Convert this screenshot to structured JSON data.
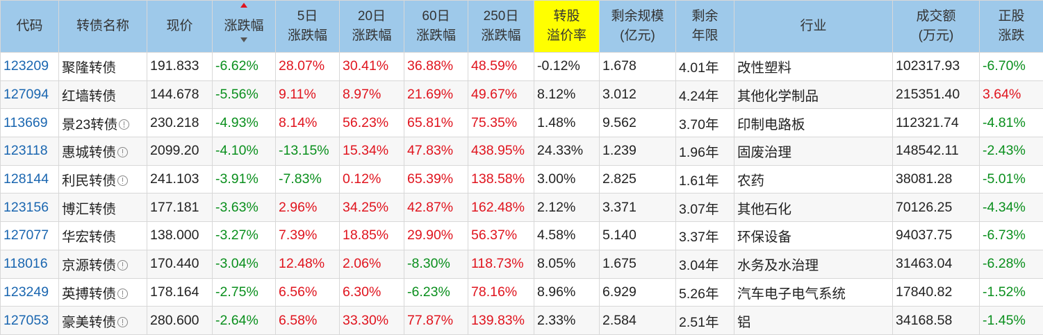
{
  "headers": {
    "code": "代码",
    "name": "转债名称",
    "price": "现价",
    "change": "涨跌幅",
    "d5_line1": "5日",
    "d5_line2": "涨跌幅",
    "d20_line1": "20日",
    "d20_line2": "涨跌幅",
    "d60_line1": "60日",
    "d60_line2": "涨跌幅",
    "d250_line1": "250日",
    "d250_line2": "涨跌幅",
    "premium_line1": "转股",
    "premium_line2": "溢价率",
    "scale_line1": "剩余规模",
    "scale_line2": "(亿元)",
    "years_line1": "剩余",
    "years_line2": "年限",
    "industry": "行业",
    "volume_line1": "成交额",
    "volume_line2": "(万元)",
    "stock_line1": "正股",
    "stock_line2": "涨跌"
  },
  "colors": {
    "header_bg": "#9ec9ea",
    "highlight": "#ffff00",
    "up": "#e0141e",
    "down": "#0a8f1d",
    "code": "#1a66b0"
  },
  "rows": [
    {
      "code": "123209",
      "name": "聚隆转债",
      "flag": false,
      "price": "191.833",
      "change": "-6.62%",
      "d5": "28.07%",
      "d20": "30.41%",
      "d60": "36.88%",
      "d250": "48.59%",
      "premium": "-0.12%",
      "scale": "1.678",
      "years": "4.01年",
      "industry": "改性塑料",
      "volume": "102317.93",
      "stock": "-6.70%"
    },
    {
      "code": "127094",
      "name": "红墙转债",
      "flag": false,
      "price": "144.678",
      "change": "-5.56%",
      "d5": "9.11%",
      "d20": "8.97%",
      "d60": "21.69%",
      "d250": "49.67%",
      "premium": "8.12%",
      "scale": "3.012",
      "years": "4.24年",
      "industry": "其他化学制品",
      "volume": "215351.40",
      "stock": "3.64%"
    },
    {
      "code": "113669",
      "name": "景23转债",
      "flag": true,
      "price": "230.218",
      "change": "-4.93%",
      "d5": "8.14%",
      "d20": "56.23%",
      "d60": "65.81%",
      "d250": "75.35%",
      "premium": "1.48%",
      "scale": "9.562",
      "years": "3.70年",
      "industry": "印制电路板",
      "volume": "112321.74",
      "stock": "-4.81%"
    },
    {
      "code": "123118",
      "name": "惠城转债",
      "flag": true,
      "price": "2099.20",
      "change": "-4.10%",
      "d5": "-13.15%",
      "d20": "15.34%",
      "d60": "47.83%",
      "d250": "438.95%",
      "premium": "24.33%",
      "scale": "1.239",
      "years": "1.96年",
      "industry": "固废治理",
      "volume": "148542.11",
      "stock": "-2.43%"
    },
    {
      "code": "128144",
      "name": "利民转债",
      "flag": true,
      "price": "241.103",
      "change": "-3.91%",
      "d5": "-7.83%",
      "d20": "0.12%",
      "d60": "65.39%",
      "d250": "138.58%",
      "premium": "3.00%",
      "scale": "2.825",
      "years": "1.61年",
      "industry": "农药",
      "volume": "38081.28",
      "stock": "-5.01%"
    },
    {
      "code": "123156",
      "name": "博汇转债",
      "flag": false,
      "price": "177.181",
      "change": "-3.63%",
      "d5": "2.96%",
      "d20": "34.25%",
      "d60": "42.87%",
      "d250": "162.48%",
      "premium": "2.12%",
      "scale": "3.371",
      "years": "3.07年",
      "industry": "其他石化",
      "volume": "70126.25",
      "stock": "-4.34%"
    },
    {
      "code": "127077",
      "name": "华宏转债",
      "flag": false,
      "price": "138.000",
      "change": "-3.27%",
      "d5": "7.39%",
      "d20": "18.85%",
      "d60": "29.90%",
      "d250": "56.37%",
      "premium": "4.58%",
      "scale": "5.140",
      "years": "3.37年",
      "industry": "环保设备",
      "volume": "94037.75",
      "stock": "-6.73%"
    },
    {
      "code": "118016",
      "name": "京源转债",
      "flag": true,
      "price": "170.440",
      "change": "-3.04%",
      "d5": "12.48%",
      "d20": "2.06%",
      "d60": "-8.30%",
      "d250": "118.73%",
      "premium": "8.05%",
      "scale": "1.675",
      "years": "3.04年",
      "industry": "水务及水治理",
      "volume": "31463.04",
      "stock": "-6.28%"
    },
    {
      "code": "123249",
      "name": "英搏转债",
      "flag": true,
      "price": "178.164",
      "change": "-2.75%",
      "d5": "6.56%",
      "d20": "6.30%",
      "d60": "-6.23%",
      "d250": "78.16%",
      "premium": "8.96%",
      "scale": "6.929",
      "years": "5.26年",
      "industry": "汽车电子电气系统",
      "volume": "17840.82",
      "stock": "-1.52%"
    },
    {
      "code": "127053",
      "name": "豪美转债",
      "flag": true,
      "price": "280.600",
      "change": "-2.64%",
      "d5": "6.58%",
      "d20": "33.30%",
      "d60": "77.87%",
      "d250": "139.83%",
      "premium": "2.33%",
      "scale": "2.584",
      "years": "2.51年",
      "industry": "铝",
      "volume": "34168.58",
      "stock": "-1.45%"
    }
  ]
}
